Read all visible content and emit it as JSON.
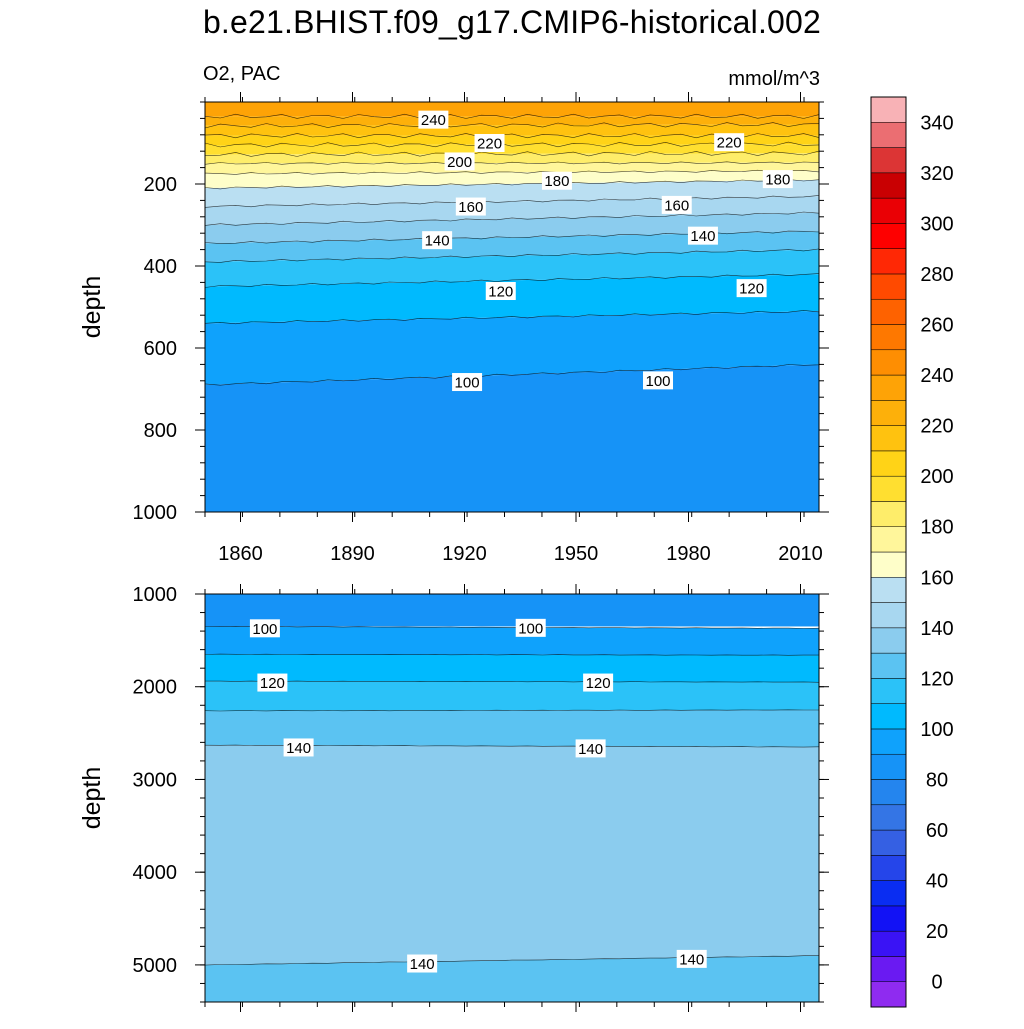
{
  "title": "b.e21.BHIST.f09_g17.CMIP6-historical.002",
  "left_string": "O2, PAC",
  "right_string": "mmol/m^3",
  "chart_data": [
    {
      "type": "contour",
      "panel": "upper",
      "ylabel": "depth",
      "y_reversed": true,
      "xlim": [
        1850,
        2014
      ],
      "ylim": [
        0,
        1000
      ],
      "x_ticks": [
        1860,
        1890,
        1920,
        1950,
        1980,
        2010
      ],
      "y_ticks": [
        200,
        400,
        600,
        800,
        1000
      ],
      "contours": [
        {
          "level": 240,
          "depth_start": 35,
          "depth_end": 35
        },
        {
          "level": 230,
          "depth_start": 58,
          "depth_end": 55
        },
        {
          "level": 220,
          "depth_start": 82,
          "depth_end": 82
        },
        {
          "level": 210,
          "depth_start": 105,
          "depth_end": 103
        },
        {
          "level": 200,
          "depth_start": 128,
          "depth_end": 125
        },
        {
          "level": 190,
          "depth_start": 150,
          "depth_end": 148
        },
        {
          "level": 180,
          "depth_start": 175,
          "depth_end": 168
        },
        {
          "level": 170,
          "depth_start": 210,
          "depth_end": 190
        },
        {
          "level": 160,
          "depth_start": 255,
          "depth_end": 230
        },
        {
          "level": 150,
          "depth_start": 300,
          "depth_end": 270
        },
        {
          "level": 140,
          "depth_start": 345,
          "depth_end": 315
        },
        {
          "level": 130,
          "depth_start": 390,
          "depth_end": 360
        },
        {
          "level": 120,
          "depth_start": 450,
          "depth_end": 420
        },
        {
          "level": 110,
          "depth_start": 540,
          "depth_end": 510
        },
        {
          "level": 100,
          "depth_start": 690,
          "depth_end": 640
        }
      ],
      "contour_labels": [
        {
          "text": "240",
          "x": 1911,
          "depth": 43
        },
        {
          "text": "220",
          "x": 1926,
          "depth": 100
        },
        {
          "text": "220",
          "x": 1990,
          "depth": 98
        },
        {
          "text": "200",
          "x": 1918,
          "depth": 145
        },
        {
          "text": "180",
          "x": 1944,
          "depth": 192
        },
        {
          "text": "180",
          "x": 2003,
          "depth": 188
        },
        {
          "text": "160",
          "x": 1921,
          "depth": 255
        },
        {
          "text": "160",
          "x": 1976,
          "depth": 251
        },
        {
          "text": "140",
          "x": 1912,
          "depth": 337
        },
        {
          "text": "140",
          "x": 1983,
          "depth": 326
        },
        {
          "text": "120",
          "x": 1929,
          "depth": 461
        },
        {
          "text": "120",
          "x": 1996,
          "depth": 454
        },
        {
          "text": "100",
          "x": 1920,
          "depth": 683
        },
        {
          "text": "100",
          "x": 1971,
          "depth": 679
        }
      ]
    },
    {
      "type": "contour",
      "panel": "lower",
      "ylabel": "depth",
      "y_reversed": true,
      "xlim": [
        1850,
        2014
      ],
      "ylim": [
        1000,
        5400
      ],
      "y_ticks": [
        1000,
        2000,
        3000,
        4000,
        5000
      ],
      "fill_below_deepest": 140,
      "contours": [
        {
          "level": 100,
          "depth_start": 1350,
          "depth_end": 1370
        },
        {
          "level": 110,
          "depth_start": 1650,
          "depth_end": 1660
        },
        {
          "level": 120,
          "depth_start": 1940,
          "depth_end": 1950
        },
        {
          "level": 130,
          "depth_start": 2260,
          "depth_end": 2250
        },
        {
          "level": 140,
          "depth_start": 2630,
          "depth_end": 2650
        },
        {
          "level": 140,
          "depth_start": 5000,
          "depth_end": 4900
        }
      ],
      "contour_labels": [
        {
          "text": "100",
          "x": 1866,
          "depth": 1370
        },
        {
          "text": "100",
          "x": 1937,
          "depth": 1365
        },
        {
          "text": "120",
          "x": 1868,
          "depth": 1955
        },
        {
          "text": "120",
          "x": 1955,
          "depth": 1955
        },
        {
          "text": "140",
          "x": 1875,
          "depth": 2655
        },
        {
          "text": "140",
          "x": 1953,
          "depth": 2665
        },
        {
          "text": "140",
          "x": 1908,
          "depth": 4985
        },
        {
          "text": "140",
          "x": 1980,
          "depth": 4935
        }
      ]
    }
  ],
  "colorbar": {
    "levels": [
      0,
      10,
      20,
      30,
      40,
      50,
      60,
      70,
      80,
      90,
      100,
      110,
      120,
      130,
      140,
      150,
      160,
      170,
      180,
      190,
      200,
      210,
      220,
      230,
      240,
      250,
      260,
      270,
      280,
      290,
      300,
      310,
      320,
      330,
      340,
      350
    ],
    "labels": [
      "0",
      "20",
      "40",
      "60",
      "80",
      "100",
      "120",
      "140",
      "160",
      "180",
      "200",
      "220",
      "240",
      "260",
      "280",
      "300",
      "320",
      "340"
    ],
    "colors": [
      "#8F2BF0",
      "#6A1AF2",
      "#3A13F5",
      "#1212F5",
      "#0A2DF2",
      "#2545EA",
      "#3560E3",
      "#3475E5",
      "#2485EE",
      "#1693F7",
      "#0FA2FC",
      "#00BAFE",
      "#2BC2F8",
      "#5BC3F2",
      "#8BCCEE",
      "#A8D7F0",
      "#BADFF2",
      "#FEFEC9",
      "#FFF69B",
      "#FEED6A",
      "#FFDF30",
      "#FFD317",
      "#FFC20F",
      "#FDB00A",
      "#FEA306",
      "#FE8E02",
      "#FE7800",
      "#FE6200",
      "#FF4A00",
      "#FF2805",
      "#FE0000",
      "#EA0005",
      "#C90002",
      "#DC3535",
      "#EB6E72",
      "#F8B2B6"
    ]
  }
}
